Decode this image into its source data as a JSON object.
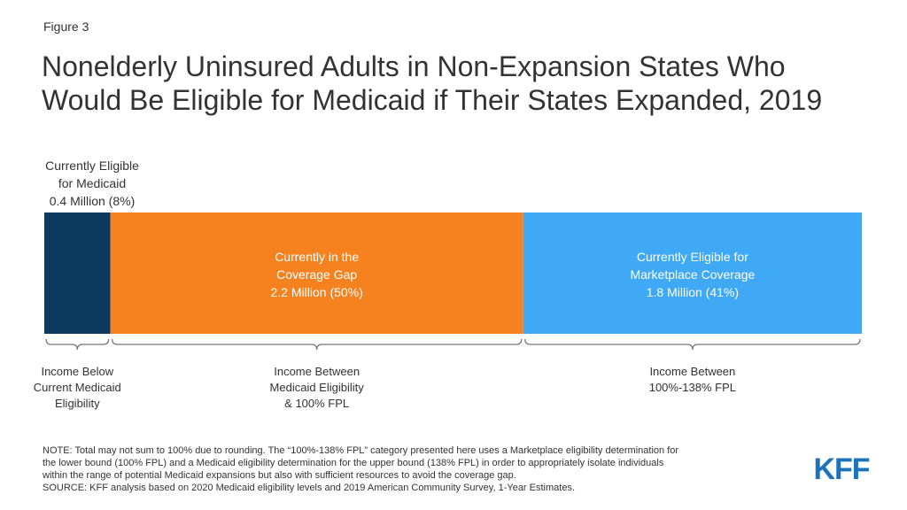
{
  "figure_label": "Figure 3",
  "title_lines": [
    "Nonelderly Uninsured Adults in Non-Expansion States Who",
    "Would Be Eligible for Medicaid if Their States Expanded, 2019"
  ],
  "colors": {
    "navy": "#0b3a5e",
    "orange": "#f5821f",
    "blue": "#3fa9f5",
    "text": "#333333",
    "logo": "#1c73b9"
  },
  "chart_data": {
    "type": "bar",
    "stacked": true,
    "orientation": "horizontal",
    "segments": [
      {
        "name": "Currently Eligible for Medicaid",
        "value_millions": 0.4,
        "percent": 8,
        "color": "#0b3a5e",
        "label_lines": [
          "Currently  Eligible",
          "for Medicaid",
          "0.4 Million  (8%)"
        ],
        "label_position": "above",
        "bracket_lines": [
          "Income Below",
          "Current Medicaid",
          "Eligibility"
        ]
      },
      {
        "name": "Currently in the Coverage Gap",
        "value_millions": 2.2,
        "percent": 50,
        "color": "#f5821f",
        "label_lines": [
          "Currently  in the",
          "Coverage Gap",
          "2.2 Million  (50%)"
        ],
        "label_position": "inside",
        "bracket_lines": [
          "Income Between",
          "Medicaid Eligibility",
          "& 100% FPL"
        ]
      },
      {
        "name": "Currently Eligible for Marketplace Coverage",
        "value_millions": 1.8,
        "percent": 41,
        "color": "#3fa9f5",
        "label_lines": [
          "Currently  Eligible  for",
          "Marketplace  Coverage",
          "1.8 Million  (41%)"
        ],
        "label_position": "inside",
        "bracket_lines": [
          "Income Between",
          "100%-138% FPL"
        ]
      }
    ]
  },
  "note_lines": [
    "NOTE: Total may not sum to 100% due to rounding. The “100%-138% FPL” category presented here uses a Marketplace eligibility determination for",
    "the lower bound (100% FPL) and a Medicaid eligibility determination for the upper bound (138% FPL) in order to appropriately isolate individuals",
    "within the range of potential Medicaid expansions but also with sufficient resources to avoid the coverage gap.",
    "SOURCE: KFF analysis based on 2020 Medicaid eligibility levels and 2019 American Community Survey, 1-Year Estimates."
  ],
  "logo_text": "KFF"
}
